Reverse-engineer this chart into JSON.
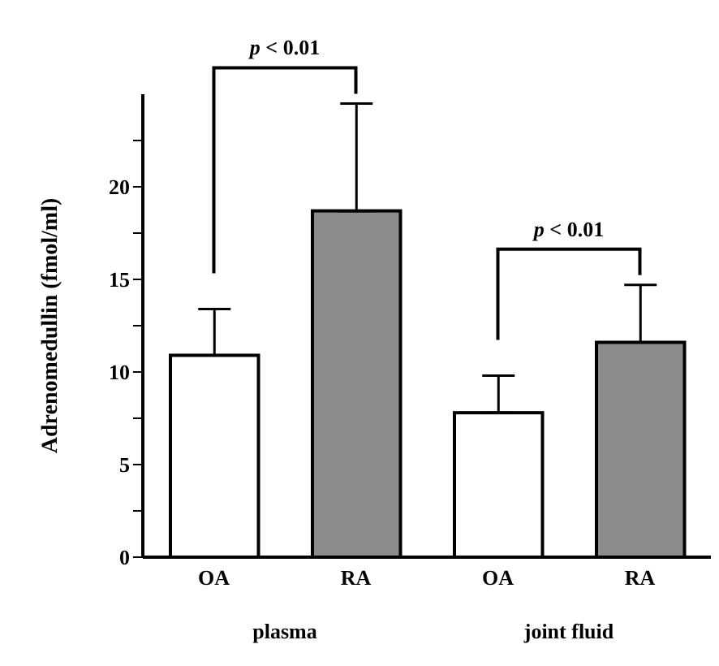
{
  "chart_data": {
    "type": "bar",
    "ylabel": "Adrenomedullin (fmol/ml)",
    "categories": [
      "OA",
      "RA",
      "OA",
      "RA"
    ],
    "values": [
      10.9,
      18.7,
      7.8,
      11.6
    ],
    "errors": [
      [
        10.9,
        13.4
      ],
      [
        18.7,
        24.5
      ],
      [
        7.8,
        9.8
      ],
      [
        11.6,
        14.7
      ]
    ],
    "colors": [
      "#ffffff",
      "#8c8c8c",
      "#ffffff",
      "#8c8c8c"
    ],
    "ylim": [
      0,
      25
    ],
    "yticks": [
      0,
      {
        "value": 2.5,
        "label": null
      },
      5,
      {
        "value": 7.5,
        "label": null
      },
      10,
      {
        "value": 12.5,
        "label": null
      },
      15,
      {
        "value": 17.5,
        "label": null
      },
      20,
      {
        "value": 22.5,
        "label": null
      }
    ],
    "annotations": [
      "p < 0.01",
      "p < 0.01",
      "plasma",
      "joint fluid"
    ],
    "grid": false,
    "legend": false
  }
}
